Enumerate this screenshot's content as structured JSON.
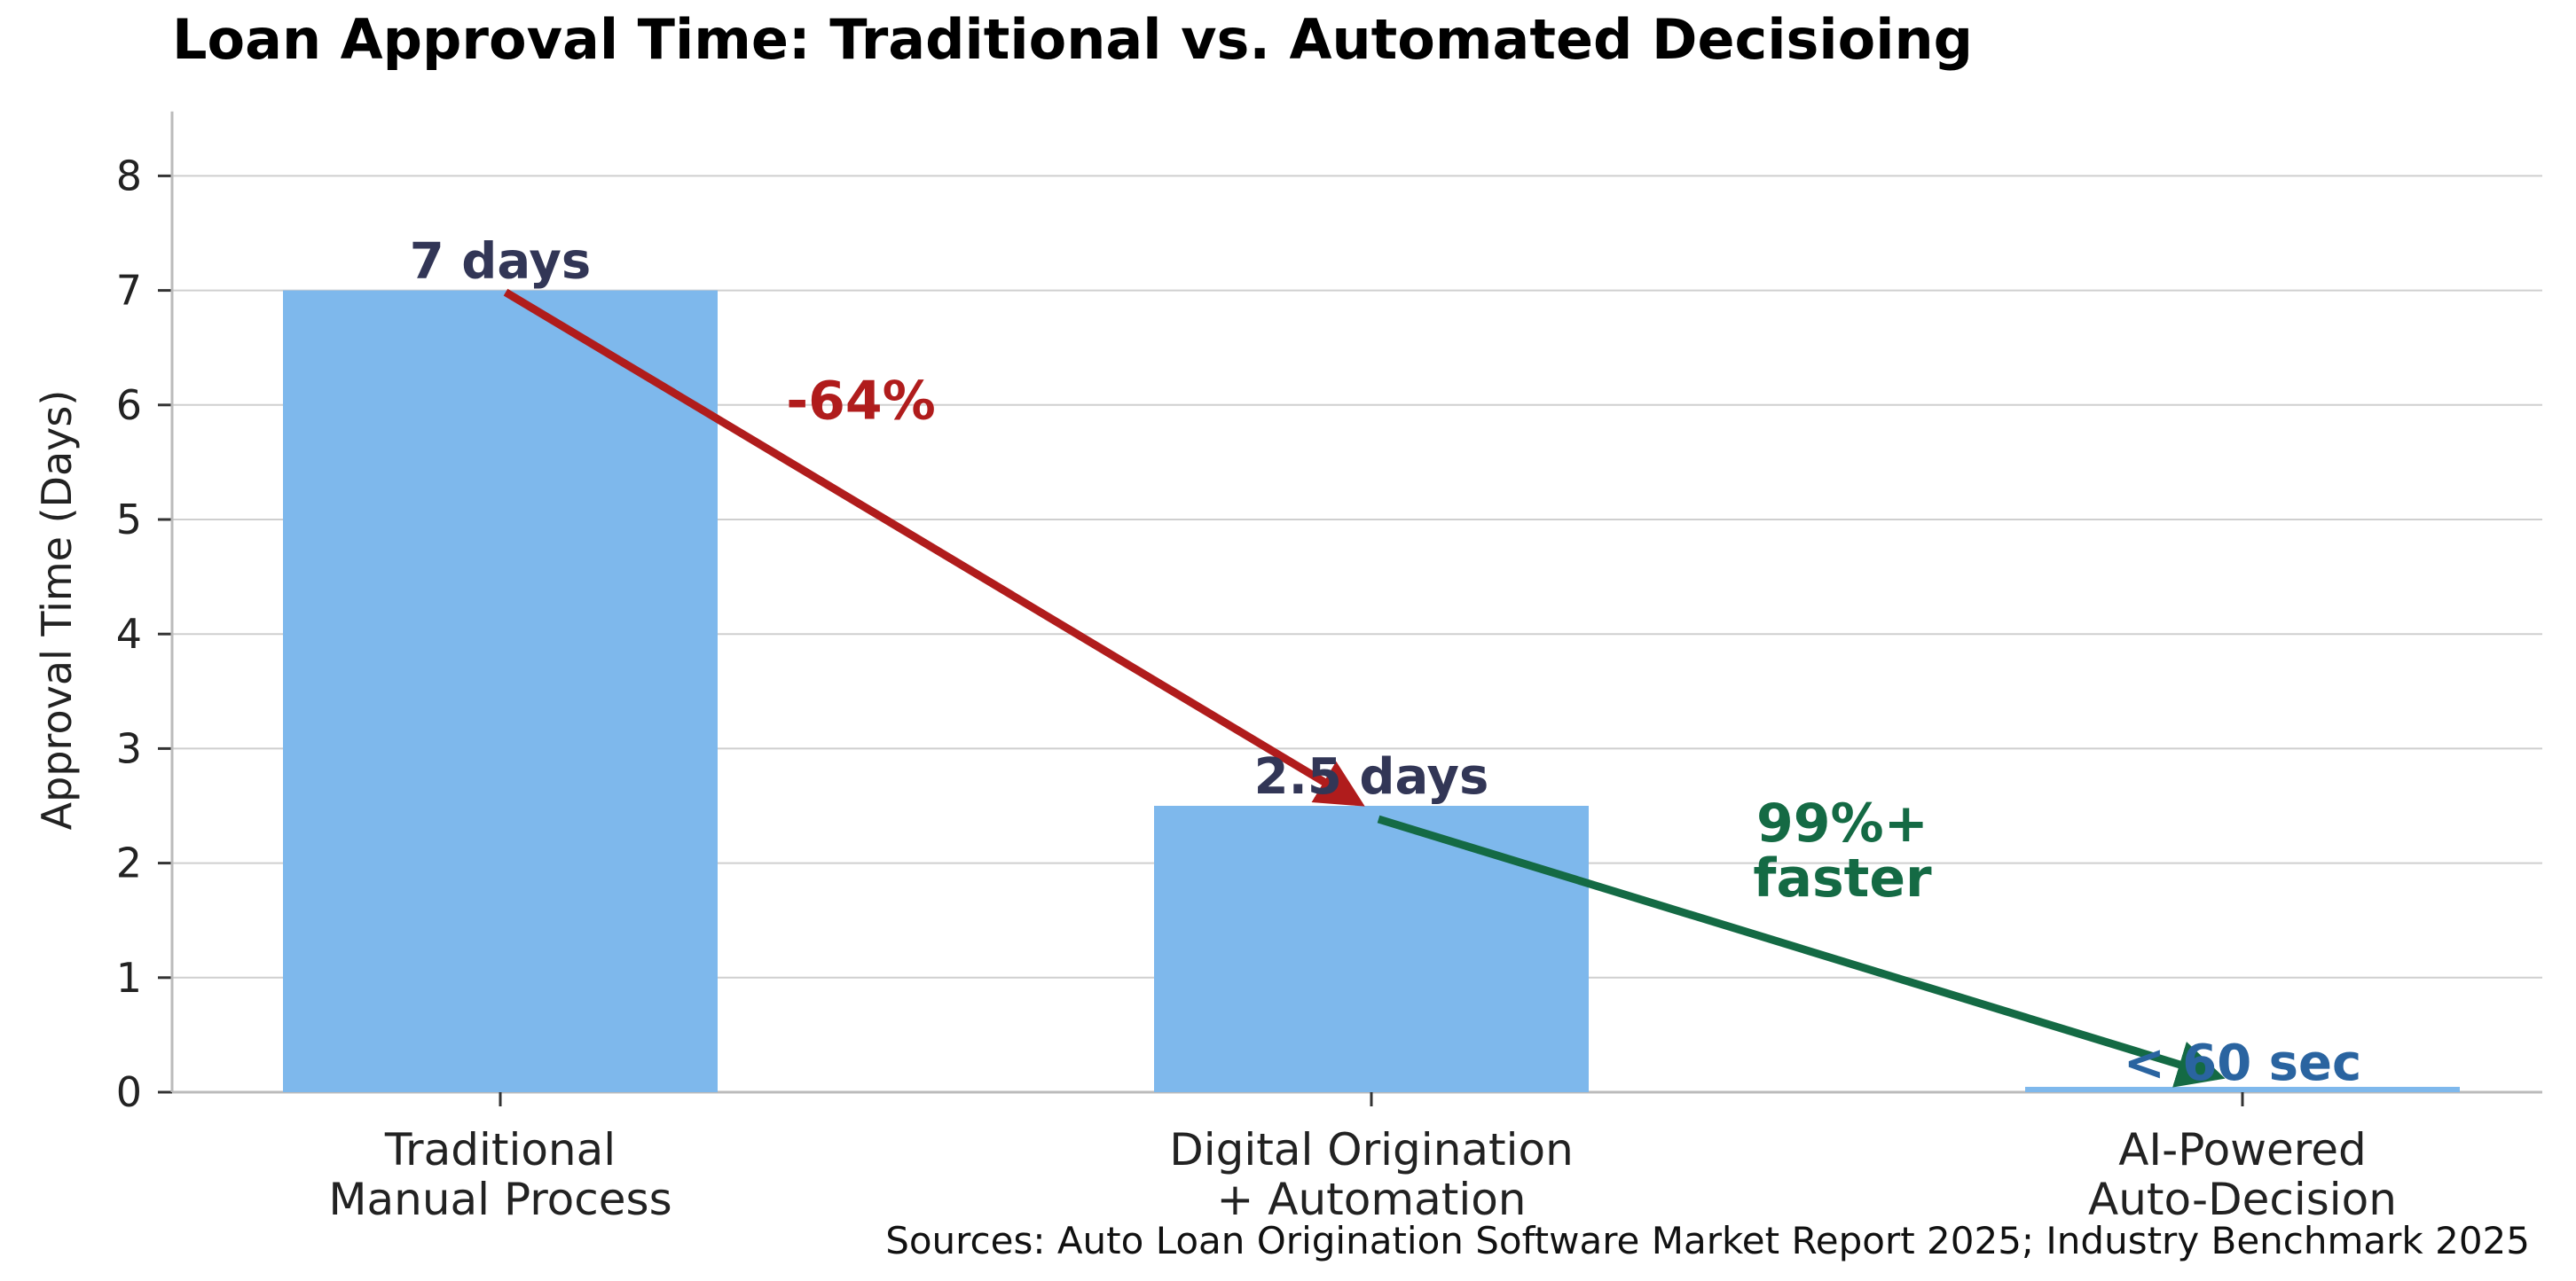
{
  "chart_data": {
    "type": "bar",
    "title": "Loan Approval Time: Traditional vs. Automated Decisioing",
    "ylabel": "Approval Time (Days)",
    "xlabel": "",
    "ylim": [
      0,
      8.5
    ],
    "yticks": [
      0,
      1,
      2,
      3,
      4,
      5,
      6,
      7,
      8
    ],
    "grid": true,
    "categories": [
      [
        "Traditional",
        "Manual Process"
      ],
      [
        "Digital Origination",
        "+ Automation"
      ],
      [
        "AI-Powered",
        "Auto-Decision"
      ]
    ],
    "values": [
      7,
      2.5,
      0.0007
    ],
    "data_labels": [
      "7 days",
      "2.5 days",
      "< 60 sec"
    ],
    "annotations": [
      {
        "text": "-64%",
        "from_category": 0,
        "to_category": 1
      },
      {
        "text": [
          "99%+",
          "faster"
        ],
        "from_category": 1,
        "to_category": 2
      }
    ],
    "source": "Sources: Auto Loan Origination Software Market Report 2025; Industry Benchmark 2025"
  },
  "colors": {
    "bar": "#7EB8EC",
    "data_label": "#323656",
    "data_label_last": "#2A64A0",
    "arrow_decrease": "#B01C1C",
    "arrow_faster": "#146A44",
    "grid": "#CFCFCF",
    "axis": "#BBBBBB"
  }
}
